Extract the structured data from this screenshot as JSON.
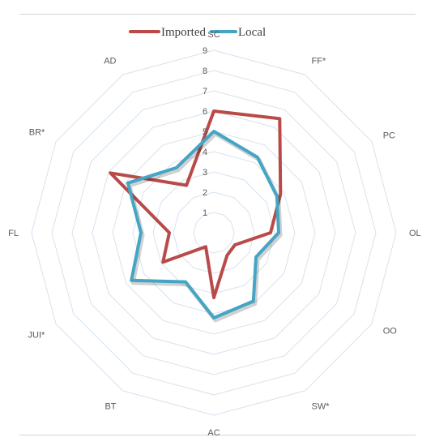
{
  "chart_data": {
    "type": "radar",
    "title": "",
    "categories": [
      "SC",
      "FF*",
      "PC",
      "OL",
      "OO",
      "SW*",
      "AC",
      "BT",
      "JUI*",
      "FL",
      "BR*",
      "AD"
    ],
    "scale": {
      "min": 0,
      "max": 9,
      "ticks": [
        1,
        2,
        3,
        4,
        5,
        6,
        7,
        8,
        9
      ]
    },
    "legend_position": "top",
    "series": [
      {
        "name": "Imported",
        "color": "#b94a48",
        "values": [
          6,
          6.5,
          3.8,
          2.8,
          1.2,
          1.3,
          3.2,
          0.8,
          2.9,
          2.2,
          5.9,
          2.7
        ]
      },
      {
        "name": "Local",
        "color": "#45a5c4",
        "values": [
          5,
          4.3,
          3.6,
          3.2,
          2.4,
          3.9,
          4.2,
          2.8,
          4.7,
          3.6,
          4.9,
          3.7
        ]
      }
    ],
    "grid": true
  }
}
